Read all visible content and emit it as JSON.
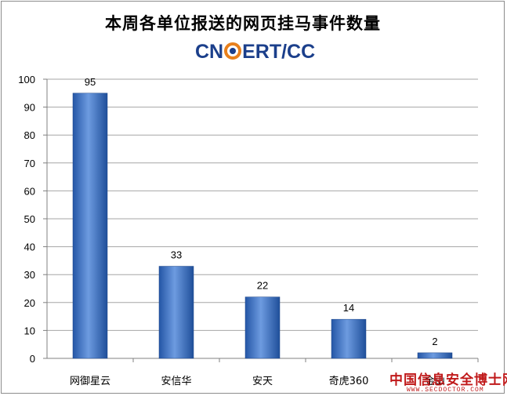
{
  "chart_data": {
    "type": "bar",
    "title": "本周各单位报送的网页挂马事件数量",
    "categories": [
      "网御星云",
      "安信华",
      "安天",
      "奇虎360",
      "金山"
    ],
    "values": [
      95,
      33,
      22,
      14,
      2
    ],
    "data_labels": [
      "95",
      "33",
      "22",
      "14",
      "2"
    ],
    "ylim": [
      0,
      100
    ],
    "yticks": [
      0,
      10,
      20,
      30,
      40,
      50,
      60,
      70,
      80,
      90,
      100
    ],
    "xlabel": "",
    "ylabel": "",
    "grid": true,
    "legend": "none",
    "bar_color": "#3a6fc4"
  },
  "branding": {
    "logo_left": "CN",
    "logo_right": "ERT/CC",
    "watermark_main": "中国信息安全博士网",
    "watermark_sub": "WWW.SECDOCTOR.COM"
  },
  "colors": {
    "bar_light": "#6d9be0",
    "bar_dark": "#1f4f9a",
    "grid": "#a6a6a6",
    "logo_blue": "#1b3f8b",
    "logo_orange": "#e8801c",
    "watermark_red": "#c0191a"
  }
}
